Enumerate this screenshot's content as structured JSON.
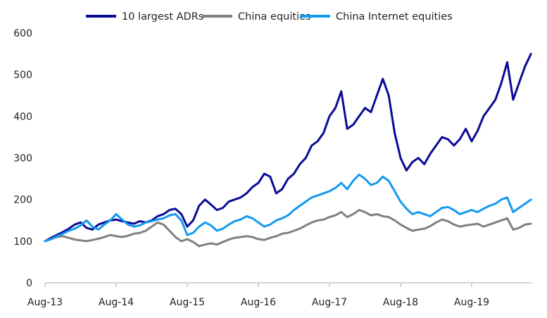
{
  "chart_data": {
    "type": "line",
    "title": "",
    "xlabel": "",
    "ylabel": "",
    "ylim": [
      0,
      600
    ],
    "yticks": [
      0,
      100,
      200,
      300,
      400,
      500,
      600
    ],
    "ytick_labels": [
      "0",
      "100",
      "200",
      "300",
      "400",
      "500",
      "600"
    ],
    "xtick_labels": [
      "Aug-13",
      "Aug-14",
      "Aug-15",
      "Aug-16",
      "Aug-17",
      "Aug-18",
      "Aug-19"
    ],
    "x_start": "Aug-13",
    "x_unit": "months since Aug-13",
    "xlim": [
      0,
      82
    ],
    "grid": false,
    "legend_position": "top",
    "series": [
      {
        "name": "10 largest ADRs",
        "color": "#0a0a96",
        "values": [
          100,
          108,
          115,
          122,
          130,
          140,
          145,
          132,
          128,
          140,
          145,
          150,
          152,
          148,
          145,
          142,
          148,
          145,
          150,
          160,
          165,
          175,
          178,
          165,
          135,
          150,
          185,
          200,
          188,
          175,
          180,
          195,
          200,
          205,
          215,
          230,
          240,
          262,
          255,
          215,
          225,
          250,
          262,
          285,
          300,
          330,
          340,
          360,
          400,
          420,
          460,
          370,
          380,
          400,
          420,
          410,
          450,
          490,
          450,
          360,
          300,
          270,
          290,
          300,
          285,
          310,
          330,
          350,
          345,
          330,
          345,
          370,
          340,
          365,
          400,
          420,
          440,
          480,
          530,
          440,
          480,
          520,
          550
        ],
        "label_color": "#222222"
      },
      {
        "name": "China equities",
        "color": "#808080",
        "values": [
          100,
          105,
          110,
          112,
          108,
          104,
          102,
          100,
          103,
          106,
          110,
          115,
          112,
          110,
          113,
          118,
          120,
          125,
          135,
          145,
          140,
          125,
          110,
          100,
          105,
          98,
          88,
          92,
          95,
          92,
          98,
          104,
          108,
          110,
          112,
          110,
          105,
          103,
          108,
          112,
          118,
          120,
          125,
          130,
          138,
          145,
          150,
          152,
          158,
          162,
          170,
          158,
          165,
          175,
          170,
          162,
          165,
          160,
          158,
          150,
          140,
          132,
          125,
          128,
          130,
          136,
          145,
          152,
          148,
          140,
          135,
          138,
          140,
          142,
          135,
          140,
          145,
          150,
          155,
          128,
          132,
          140,
          142
        ],
        "label_color": "#222222"
      },
      {
        "name": "China Internet equities",
        "color": "#1499f0",
        "values": [
          100,
          105,
          112,
          118,
          125,
          130,
          138,
          150,
          135,
          128,
          140,
          150,
          165,
          152,
          140,
          135,
          138,
          145,
          148,
          152,
          155,
          162,
          165,
          150,
          115,
          120,
          135,
          145,
          138,
          125,
          130,
          140,
          148,
          152,
          160,
          155,
          145,
          135,
          140,
          150,
          155,
          162,
          175,
          185,
          195,
          205,
          210,
          215,
          220,
          228,
          240,
          225,
          245,
          260,
          250,
          235,
          240,
          255,
          245,
          220,
          195,
          178,
          165,
          170,
          165,
          160,
          170,
          180,
          182,
          175,
          165,
          170,
          175,
          170,
          178,
          185,
          190,
          200,
          205,
          170,
          180,
          190,
          200
        ],
        "label_color": "#222222"
      }
    ]
  }
}
